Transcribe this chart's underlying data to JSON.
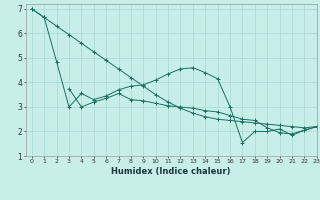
{
  "xlabel": "Humidex (Indice chaleur)",
  "xlim": [
    -0.5,
    23
  ],
  "ylim": [
    1,
    7.2
  ],
  "yticks": [
    1,
    2,
    3,
    4,
    5,
    6,
    7
  ],
  "xticks": [
    0,
    1,
    2,
    3,
    4,
    5,
    6,
    7,
    8,
    9,
    10,
    11,
    12,
    13,
    14,
    15,
    16,
    17,
    18,
    19,
    20,
    21,
    22,
    23
  ],
  "background_color": "#c8eee8",
  "grid_color": "#a8d8d0",
  "line_color": "#1a7060",
  "line1_x": [
    0,
    1,
    2,
    3,
    4,
    5,
    6,
    7,
    8,
    9,
    10,
    11,
    12,
    13,
    14,
    15,
    16,
    17,
    18,
    19,
    20,
    21,
    22,
    23
  ],
  "line1_y": [
    7.0,
    6.65,
    6.3,
    5.95,
    5.6,
    5.25,
    4.9,
    4.55,
    4.2,
    3.85,
    3.5,
    3.2,
    2.95,
    2.75,
    2.6,
    2.5,
    2.45,
    2.4,
    2.35,
    2.3,
    2.25,
    2.2,
    2.15,
    2.2
  ],
  "line2_x": [
    0,
    1,
    2,
    3,
    4,
    5,
    6,
    7,
    8,
    9,
    10,
    11,
    12,
    13,
    14,
    15,
    16,
    17,
    18,
    19,
    20,
    21,
    22,
    23
  ],
  "line2_y": [
    7.0,
    6.65,
    4.85,
    3.0,
    3.55,
    3.3,
    3.45,
    3.7,
    3.85,
    3.9,
    4.1,
    4.35,
    4.55,
    4.6,
    4.4,
    4.15,
    3.0,
    1.55,
    2.0,
    2.0,
    2.1,
    1.85,
    2.05,
    2.2
  ],
  "line3_x": [
    3,
    4,
    5,
    6,
    7,
    8,
    9,
    10,
    11,
    12,
    13,
    14,
    15,
    16,
    17,
    18,
    19,
    20,
    21,
    22,
    23
  ],
  "line3_y": [
    3.75,
    3.0,
    3.2,
    3.35,
    3.55,
    3.3,
    3.25,
    3.15,
    3.05,
    3.0,
    2.95,
    2.85,
    2.8,
    2.65,
    2.5,
    2.45,
    2.15,
    1.95,
    1.9,
    2.05,
    2.2
  ]
}
